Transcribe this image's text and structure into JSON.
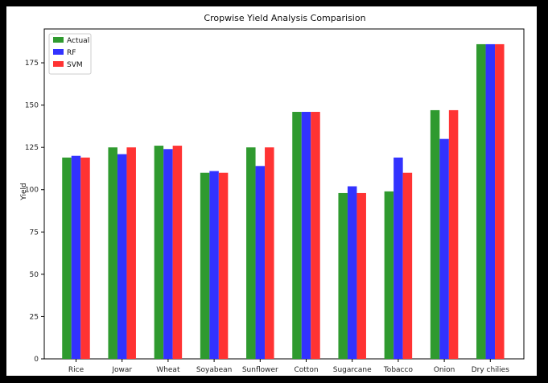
{
  "chart_data": {
    "type": "bar",
    "title": "Cropwise Yield Analysis Comparision",
    "xlabel": "",
    "ylabel": "Yield",
    "ylim": [
      0,
      195
    ],
    "yticks": [
      0,
      25,
      50,
      75,
      100,
      125,
      150,
      175
    ],
    "grid": false,
    "legend_position": "top-left",
    "categories": [
      "Rice",
      "Jowar",
      "Wheat",
      "Soyabean",
      "Sunflower",
      "Cotton",
      "Sugarcane",
      "Tobacco",
      "Onion",
      "Dry chilies"
    ],
    "series": [
      {
        "name": "Actual",
        "color": "#2f9a2f",
        "values": [
          119,
          125,
          126,
          110,
          125,
          146,
          98,
          99,
          147,
          186
        ]
      },
      {
        "name": "RF",
        "color": "#3232ff",
        "values": [
          120,
          121,
          124,
          111,
          114,
          146,
          102,
          119,
          130,
          186
        ]
      },
      {
        "name": "SVM",
        "color": "#ff3333",
        "values": [
          119,
          125,
          126,
          110,
          125,
          146,
          98,
          110,
          147,
          186
        ]
      }
    ]
  }
}
